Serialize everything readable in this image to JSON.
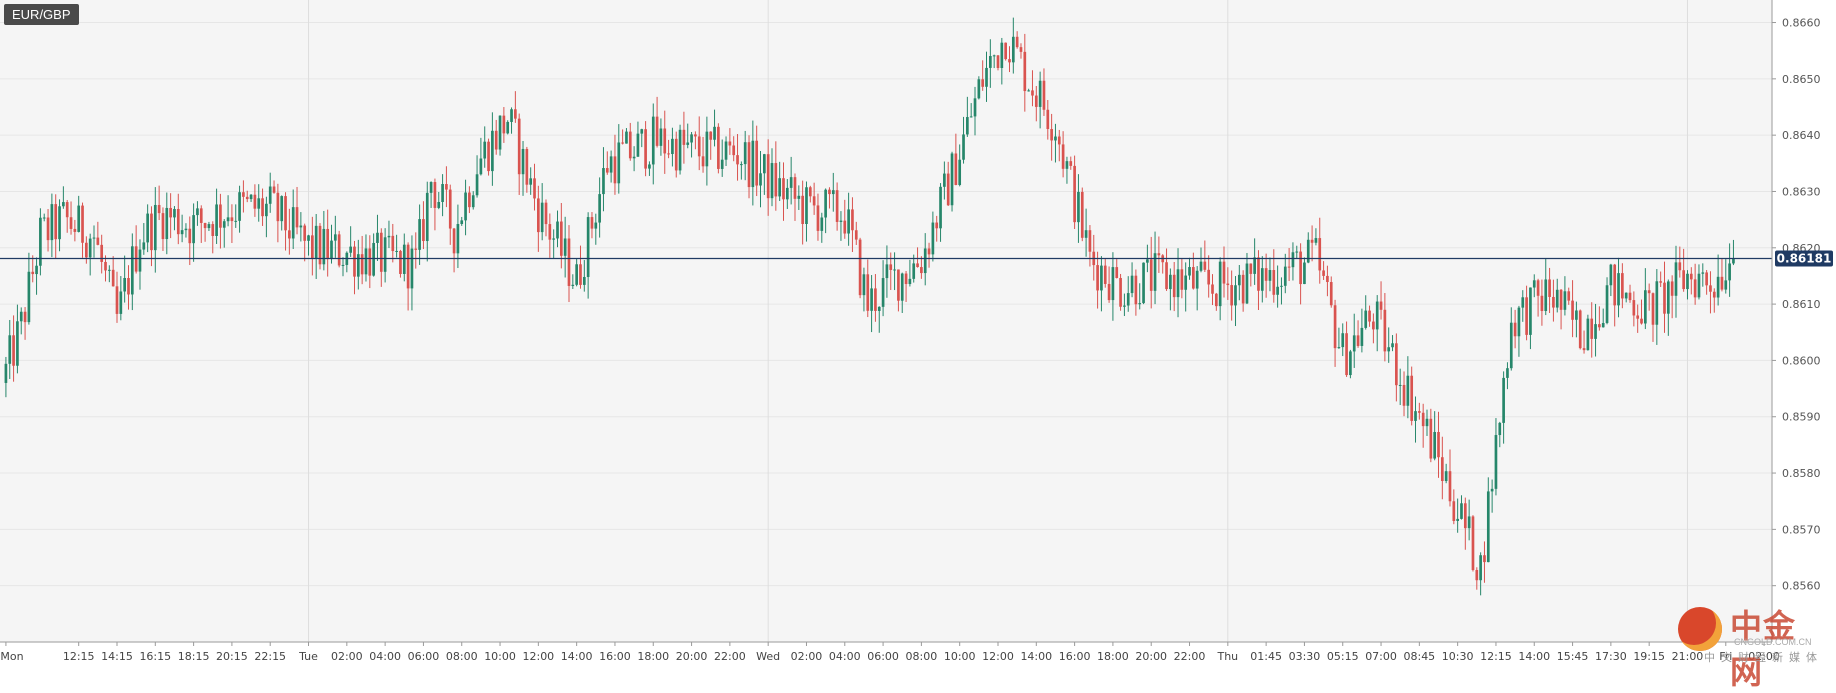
{
  "symbol": "EUR/GBP",
  "current_price_label": "0.86181",
  "watermark": {
    "cn": "中金网",
    "url": "CNGOLD.COM.CN",
    "sub": "中文财经新媒体"
  },
  "colors": {
    "up": "#26866a",
    "down": "#d9534f",
    "price_line": "#1f3a63",
    "grid": "#e6e6e6",
    "plot_bg": "#f5f5f5"
  },
  "chart_data": {
    "type": "candlestick",
    "title": "EUR/GBP",
    "ylim": [
      0.855,
      0.8664
    ],
    "yticks": [
      0.856,
      0.857,
      0.858,
      0.859,
      0.86,
      0.861,
      0.862,
      0.863,
      0.864,
      0.865,
      0.866
    ],
    "ytick_labels": [
      "0.8560",
      "0.8570",
      "0.8580",
      "0.8590",
      "0.8600",
      "0.8610",
      "0.8620",
      "0.8630",
      "0.8640",
      "0.8650",
      "0.8660"
    ],
    "xlabels": [
      "Mon",
      "12:15",
      "14:15",
      "16:15",
      "18:15",
      "20:15",
      "22:15",
      "Tue",
      "02:00",
      "04:00",
      "06:00",
      "08:00",
      "10:00",
      "12:00",
      "14:00",
      "16:00",
      "18:00",
      "20:00",
      "22:00",
      "Wed",
      "02:00",
      "04:00",
      "06:00",
      "08:00",
      "10:00",
      "12:00",
      "14:00",
      "16:00",
      "18:00",
      "20:00",
      "22:00",
      "Thu",
      "01:45",
      "03:30",
      "05:15",
      "07:00",
      "08:45",
      "10:30",
      "12:15",
      "14:00",
      "15:45",
      "17:30",
      "19:15",
      "21:00",
      "Fri",
      "02:00"
    ],
    "xlabel_bar_index": [
      0,
      19,
      29,
      39,
      49,
      59,
      69,
      79,
      89,
      99,
      109,
      119,
      129,
      139,
      149,
      159,
      169,
      179,
      189,
      199,
      209,
      219,
      229,
      239,
      249,
      259,
      269,
      279,
      289,
      299,
      309,
      319,
      329,
      339,
      349,
      359,
      369,
      379,
      389,
      399,
      409,
      419,
      429,
      439,
      449,
      459
    ],
    "major_grid_bar_index": [
      79,
      199,
      319,
      439
    ],
    "current_price": 0.86181,
    "waypoints": [
      [
        0,
        0.8596
      ],
      [
        5,
        0.8606
      ],
      [
        10,
        0.8622
      ],
      [
        16,
        0.8625
      ],
      [
        24,
        0.8622
      ],
      [
        30,
        0.8607
      ],
      [
        36,
        0.8622
      ],
      [
        42,
        0.8626
      ],
      [
        50,
        0.8624
      ],
      [
        60,
        0.8627
      ],
      [
        70,
        0.8627
      ],
      [
        80,
        0.862
      ],
      [
        92,
        0.8619
      ],
      [
        108,
        0.8617
      ],
      [
        112,
        0.8632
      ],
      [
        118,
        0.8623
      ],
      [
        124,
        0.8635
      ],
      [
        132,
        0.8643
      ],
      [
        140,
        0.8627
      ],
      [
        150,
        0.8614
      ],
      [
        158,
        0.8635
      ],
      [
        170,
        0.8639
      ],
      [
        182,
        0.8637
      ],
      [
        192,
        0.8637
      ],
      [
        202,
        0.8631
      ],
      [
        210,
        0.8627
      ],
      [
        220,
        0.8626
      ],
      [
        226,
        0.861
      ],
      [
        232,
        0.8614
      ],
      [
        240,
        0.8618
      ],
      [
        248,
        0.8633
      ],
      [
        256,
        0.865
      ],
      [
        262,
        0.8658
      ],
      [
        268,
        0.865
      ],
      [
        275,
        0.8642
      ],
      [
        284,
        0.8618
      ],
      [
        292,
        0.8613
      ],
      [
        302,
        0.8615
      ],
      [
        316,
        0.8613
      ],
      [
        330,
        0.8615
      ],
      [
        343,
        0.8618
      ],
      [
        350,
        0.8601
      ],
      [
        358,
        0.8608
      ],
      [
        366,
        0.8596
      ],
      [
        374,
        0.8584
      ],
      [
        386,
        0.8563
      ],
      [
        394,
        0.8607
      ],
      [
        404,
        0.8612
      ],
      [
        412,
        0.8605
      ],
      [
        420,
        0.8613
      ],
      [
        430,
        0.8609
      ],
      [
        440,
        0.8615
      ],
      [
        447,
        0.8614
      ],
      [
        451,
        0.8618
      ]
    ]
  }
}
